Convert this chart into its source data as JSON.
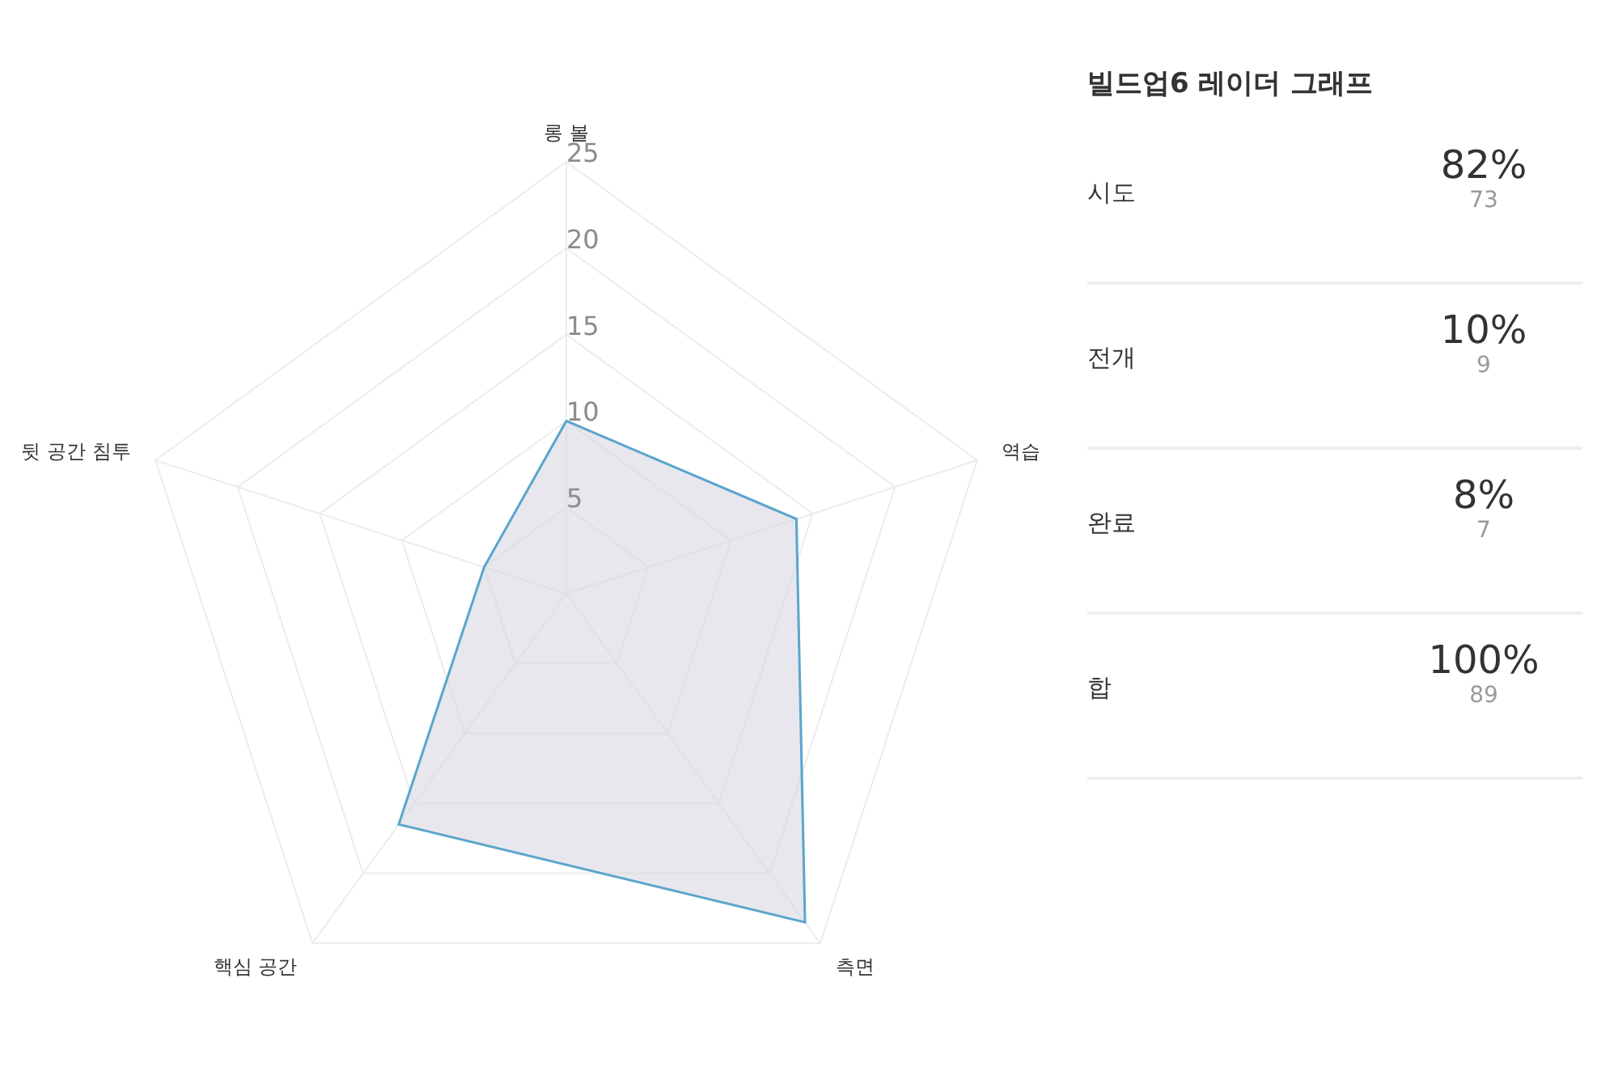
{
  "chart_data": [
    {
      "type": "radar",
      "categories": [
        "롱 볼",
        "역습",
        "측면",
        "핵심 공간",
        "뒷 공간 침투"
      ],
      "series": [
        {
          "color": "#5aa5cc",
          "values": [
            10,
            14,
            23.5,
            16.5,
            5
          ]
        }
      ],
      "ylim": [
        0,
        25
      ],
      "yticks": [
        5,
        10,
        15,
        20,
        25
      ],
      "grid": true
    },
    {
      "type": "other",
      "title": "빌드업6 레이더 그래프",
      "categories": [
        "시도",
        "전개",
        "완료",
        "합"
      ],
      "series": [
        {
          "values": [
            82,
            10,
            8,
            100
          ],
          "value_labels": [
            "82%",
            "10%",
            "8%",
            "100%"
          ]
        },
        {
          "values": [
            73,
            9,
            7,
            89
          ]
        }
      ],
      "data_labels": true
    }
  ]
}
